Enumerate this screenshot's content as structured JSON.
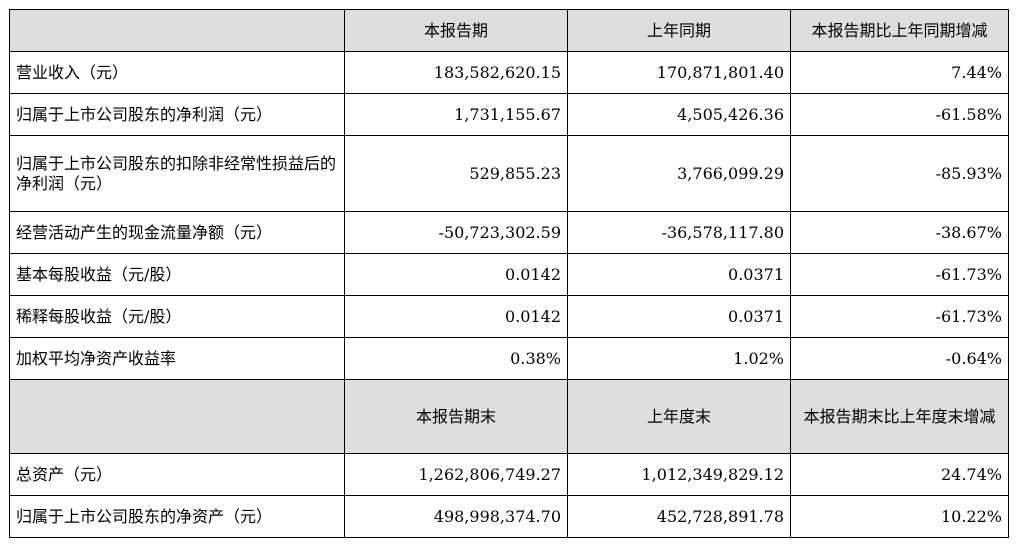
{
  "header1": {
    "blank": "",
    "current": "本报告期",
    "previous": "上年同期",
    "change": "本报告期比上年同期增减"
  },
  "rows1": [
    {
      "label": "营业收入（元）",
      "current": "183,582,620.15",
      "previous": "170,871,801.40",
      "change": "7.44%"
    },
    {
      "label": "归属于上市公司股东的净利润（元）",
      "current": "1,731,155.67",
      "previous": "4,505,426.36",
      "change": "-61.58%"
    },
    {
      "label": "归属于上市公司股东的扣除非经常性损益后的净利润（元）",
      "current": "529,855.23",
      "previous": "3,766,099.29",
      "change": "-85.93%"
    },
    {
      "label": "经营活动产生的现金流量净额（元）",
      "current": "-50,723,302.59",
      "previous": "-36,578,117.80",
      "change": "-38.67%"
    },
    {
      "label": "基本每股收益（元/股）",
      "current": "0.0142",
      "previous": "0.0371",
      "change": "-61.73%"
    },
    {
      "label": "稀释每股收益（元/股）",
      "current": "0.0142",
      "previous": "0.0371",
      "change": "-61.73%"
    },
    {
      "label": "加权平均净资产收益率",
      "current": "0.38%",
      "previous": "1.02%",
      "change": "-0.64%"
    }
  ],
  "header2": {
    "blank": "",
    "current": "本报告期末",
    "previous": "上年度末",
    "change": "本报告期末比上年度末增减"
  },
  "rows2": [
    {
      "label": "总资产（元）",
      "current": "1,262,806,749.27",
      "previous": "1,012,349,829.12",
      "change": "24.74%"
    },
    {
      "label": "归属于上市公司股东的净资产（元）",
      "current": "498,998,374.70",
      "previous": "452,728,891.78",
      "change": "10.22%"
    }
  ]
}
